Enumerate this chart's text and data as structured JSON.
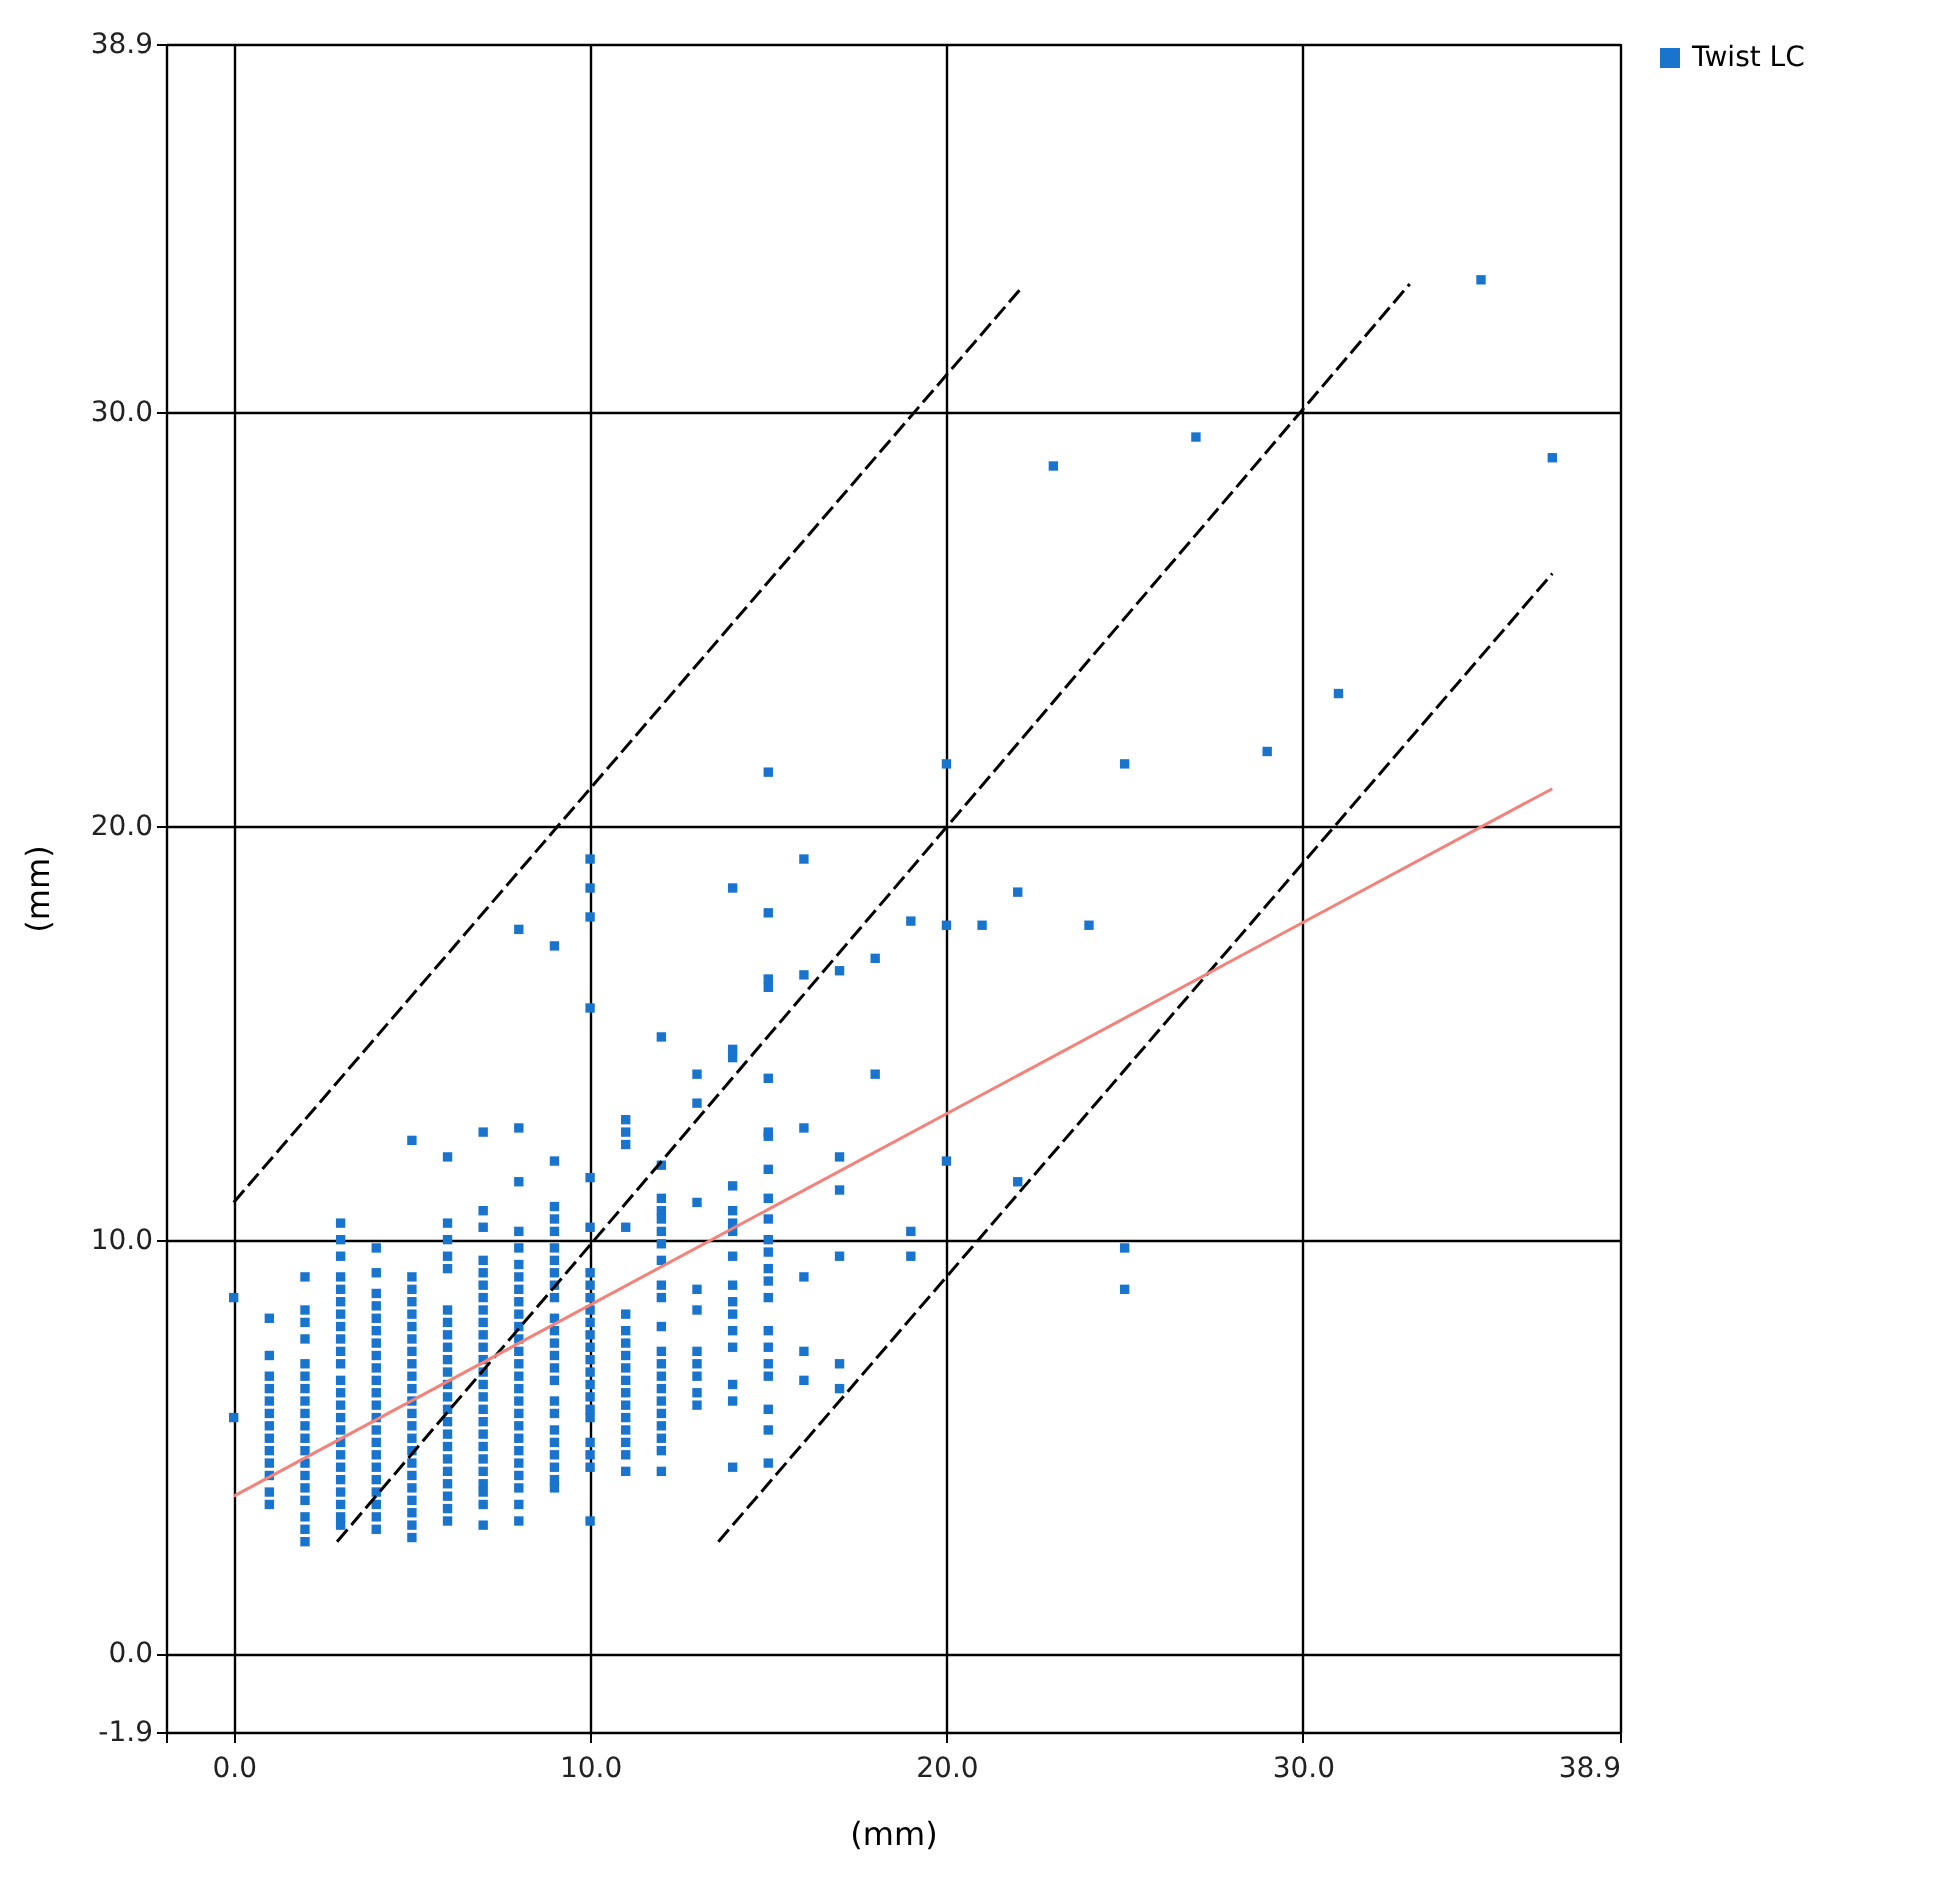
{
  "chart_data": {
    "type": "scatter",
    "xlabel": "(mm)",
    "ylabel": "(mm)",
    "xlim": [
      -1.9,
      38.9
    ],
    "ylim": [
      -1.9,
      38.9
    ],
    "xticks": [
      {
        "value": -1.9,
        "label": null
      },
      {
        "value": 0,
        "label": "0.0"
      },
      {
        "value": 10,
        "label": "10.0"
      },
      {
        "value": 20,
        "label": "20.0"
      },
      {
        "value": 30,
        "label": "30.0"
      },
      38.9
    ],
    "yticks": [
      -1.9,
      {
        "value": 0,
        "label": "0.0"
      },
      {
        "value": 10,
        "label": "10.0"
      },
      {
        "value": 20,
        "label": "20.0"
      },
      {
        "value": 30,
        "label": "30.0"
      },
      38.9
    ],
    "grid": true,
    "legend": "top right",
    "series": [
      {
        "name": "Twist LC",
        "color": "#1874cd",
        "marker": "square",
        "x": [
          0,
          0,
          1,
          1,
          1,
          1,
          1,
          1,
          1,
          1,
          1,
          1,
          1,
          1,
          1,
          2,
          2,
          2,
          2,
          2,
          2,
          2,
          2,
          2,
          2,
          2,
          2,
          2,
          2,
          2,
          2,
          2,
          2,
          2,
          3,
          3,
          3,
          3,
          3,
          3,
          3,
          3,
          3,
          3,
          3,
          3,
          3,
          3,
          3,
          3,
          3,
          3,
          3,
          3,
          3,
          3,
          3,
          3,
          4,
          4,
          4,
          4,
          4,
          4,
          4,
          4,
          4,
          4,
          4,
          4,
          4,
          4,
          4,
          4,
          4,
          4,
          4,
          4,
          4,
          4,
          5,
          5,
          5,
          5,
          5,
          5,
          5,
          5,
          5,
          5,
          5,
          5,
          5,
          5,
          5,
          5,
          5,
          5,
          5,
          5,
          5,
          5,
          5,
          6,
          6,
          6,
          6,
          6,
          6,
          6,
          6,
          6,
          6,
          6,
          6,
          6,
          6,
          6,
          6,
          6,
          6,
          6,
          6,
          6,
          6,
          6,
          7,
          7,
          7,
          7,
          7,
          7,
          7,
          7,
          7,
          7,
          7,
          7,
          7,
          7,
          7,
          7,
          7,
          7,
          7,
          7,
          7,
          7,
          7,
          7,
          7,
          8,
          8,
          8,
          8,
          8,
          8,
          8,
          8,
          8,
          8,
          8,
          8,
          8,
          8,
          8,
          8,
          8,
          8,
          8,
          8,
          8,
          8,
          8,
          8,
          8,
          8,
          9,
          9,
          9,
          9,
          9,
          9,
          9,
          9,
          9,
          9,
          9,
          9,
          9,
          9,
          9,
          9,
          9,
          9,
          9,
          9,
          9,
          9,
          9,
          9,
          10,
          10,
          10,
          10,
          10,
          10,
          10,
          10,
          10,
          10,
          10,
          10,
          10,
          10,
          10,
          10,
          10,
          10,
          10,
          10,
          10,
          10,
          10,
          11,
          11,
          11,
          11,
          11,
          11,
          11,
          11,
          11,
          11,
          11,
          11,
          11,
          11,
          11,
          11,
          11,
          12,
          12,
          12,
          12,
          12,
          12,
          12,
          12,
          12,
          12,
          12,
          12,
          12,
          12,
          12,
          12,
          12,
          12,
          12,
          12,
          12,
          13,
          13,
          13,
          13,
          13,
          13,
          13,
          13,
          13,
          13,
          14,
          14,
          14,
          14,
          14,
          14,
          14,
          14,
          14,
          14,
          14,
          14,
          14,
          14,
          14,
          14,
          15,
          15,
          15,
          15,
          15,
          15,
          15,
          15,
          15,
          15,
          15,
          15,
          15,
          15,
          15,
          15,
          15,
          15,
          15,
          15,
          15,
          15,
          16,
          16,
          16,
          16,
          16,
          16,
          17,
          17,
          17,
          17,
          17,
          17,
          18,
          18,
          19,
          19,
          19,
          20,
          20,
          20,
          21,
          22,
          22,
          23,
          24,
          25,
          25,
          25,
          27,
          29,
          31,
          35,
          37
        ],
        "values": [
          8.6,
          5.7,
          8.1,
          7.2,
          6.7,
          6.4,
          6.1,
          5.8,
          5.5,
          5.2,
          4.9,
          4.6,
          4.3,
          3.9,
          3.6,
          9.1,
          8.3,
          8.0,
          7.6,
          7.0,
          6.7,
          6.4,
          6.1,
          5.8,
          5.5,
          5.2,
          4.9,
          4.6,
          4.3,
          4.0,
          3.7,
          3.3,
          3.0,
          2.7,
          10.4,
          10.0,
          9.6,
          9.1,
          8.8,
          8.5,
          8.2,
          7.9,
          7.6,
          7.3,
          7.0,
          6.6,
          6.3,
          6.0,
          5.7,
          5.4,
          5.1,
          4.8,
          4.5,
          4.2,
          3.9,
          3.6,
          3.3,
          3.1,
          9.8,
          9.2,
          8.7,
          8.4,
          8.1,
          7.8,
          7.5,
          7.2,
          6.9,
          6.6,
          6.3,
          6.0,
          5.7,
          5.4,
          5.1,
          4.8,
          4.5,
          4.2,
          3.9,
          3.6,
          3.3,
          3.0,
          12.4,
          9.1,
          8.8,
          8.5,
          8.2,
          7.9,
          7.6,
          7.3,
          7.0,
          6.7,
          6.4,
          6.1,
          5.8,
          5.5,
          5.2,
          4.9,
          4.6,
          4.3,
          4.0,
          3.7,
          3.4,
          3.1,
          2.8,
          12.0,
          10.4,
          10.0,
          9.6,
          9.3,
          8.3,
          8.0,
          7.7,
          7.4,
          7.1,
          6.8,
          6.5,
          6.2,
          5.9,
          5.6,
          5.3,
          5.0,
          4.7,
          4.4,
          4.1,
          3.8,
          3.5,
          3.2,
          12.6,
          10.7,
          10.3,
          9.5,
          9.2,
          8.9,
          8.6,
          8.3,
          8.0,
          7.7,
          7.4,
          7.1,
          6.8,
          6.5,
          6.2,
          5.9,
          5.6,
          5.3,
          5.0,
          4.7,
          4.4,
          4.1,
          3.9,
          3.6,
          3.1,
          17.5,
          12.7,
          11.4,
          10.2,
          9.8,
          9.4,
          9.1,
          8.8,
          8.5,
          8.2,
          7.9,
          7.6,
          7.3,
          7.0,
          6.7,
          6.4,
          6.1,
          5.8,
          5.5,
          5.2,
          4.9,
          4.6,
          4.3,
          4.0,
          3.6,
          3.2,
          17.1,
          11.9,
          10.8,
          10.5,
          10.2,
          9.8,
          9.5,
          9.2,
          8.9,
          8.6,
          8.1,
          7.8,
          7.5,
          7.2,
          6.9,
          6.6,
          6.1,
          5.8,
          5.4,
          5.1,
          4.8,
          4.5,
          4.2,
          4.0,
          19.2,
          18.5,
          17.8,
          15.6,
          11.5,
          10.3,
          9.2,
          8.9,
          8.6,
          8.3,
          8.0,
          7.7,
          7.4,
          7.1,
          6.8,
          6.5,
          6.2,
          5.9,
          5.7,
          5.1,
          4.8,
          4.5,
          3.2,
          12.9,
          12.6,
          12.3,
          10.3,
          8.2,
          7.8,
          7.5,
          7.2,
          6.9,
          6.6,
          6.3,
          6.0,
          5.7,
          5.4,
          5.1,
          4.8,
          4.4,
          14.9,
          11.8,
          11.0,
          10.7,
          10.5,
          10.2,
          9.9,
          9.5,
          8.9,
          8.6,
          7.9,
          7.3,
          7.0,
          6.7,
          6.4,
          6.1,
          5.8,
          5.5,
          5.2,
          4.9,
          4.4,
          14.0,
          13.3,
          10.9,
          8.8,
          8.3,
          7.3,
          7.0,
          6.7,
          6.3,
          6.0,
          18.5,
          14.6,
          14.4,
          11.3,
          10.7,
          10.4,
          10.2,
          9.6,
          8.9,
          8.5,
          8.2,
          7.8,
          7.4,
          6.5,
          6.1,
          4.5,
          21.3,
          17.9,
          16.3,
          16.1,
          13.9,
          12.6,
          12.5,
          11.7,
          11.0,
          10.5,
          10.0,
          9.7,
          9.3,
          9.0,
          8.6,
          7.8,
          7.4,
          7.0,
          6.7,
          5.9,
          5.4,
          4.6,
          19.2,
          16.4,
          12.7,
          9.1,
          7.3,
          6.6,
          16.5,
          12.0,
          11.2,
          9.6,
          7.0,
          6.4,
          16.8,
          14.0,
          17.7,
          10.2,
          9.6,
          21.5,
          17.6,
          11.9,
          17.6,
          18.4,
          11.4,
          28.7,
          17.6,
          21.5,
          9.8,
          8.8,
          29.4,
          21.8,
          23.2,
          33.2,
          28.9
        ]
      },
      {
        "type": "line",
        "color": "#000000",
        "line_style": "dashed",
        "x": [
          0,
          22.1
        ],
        "values": [
          10.9,
          33.0
        ]
      },
      {
        "type": "line",
        "color": "#000000",
        "line_style": "dashed",
        "x": [
          2.9,
          33.0
        ],
        "values": [
          2.7,
          33.1
        ]
      },
      {
        "type": "line",
        "color": "#000000",
        "line_style": "dashed",
        "x": [
          13.6,
          37.0
        ],
        "values": [
          2.7,
          26.1
        ]
      },
      {
        "type": "line",
        "color": "#f4817a",
        "line_style": "solid",
        "x": [
          0,
          37.0
        ],
        "values": [
          3.8,
          20.9
        ]
      }
    ]
  }
}
